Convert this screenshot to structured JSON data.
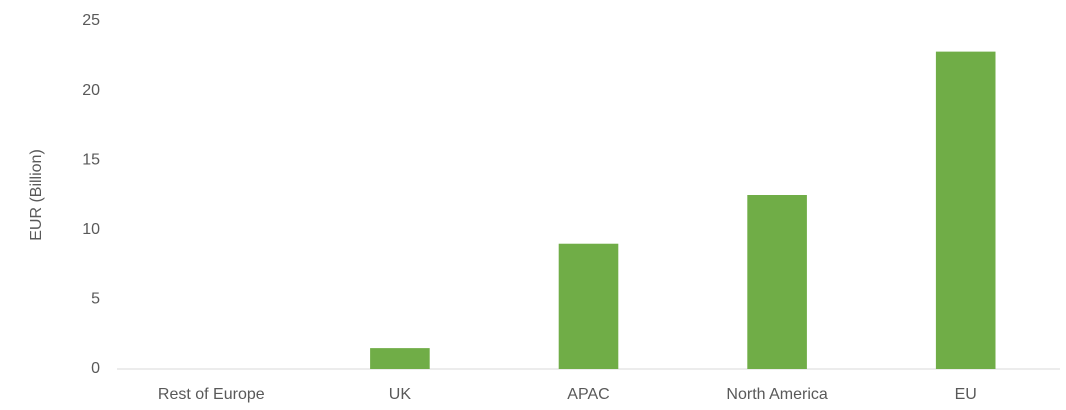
{
  "chart_data": {
    "type": "bar",
    "y_label": "EUR (Billion)",
    "categories": [
      "Rest of Europe",
      "UK",
      "APAC",
      "North America",
      "EU"
    ],
    "values": [
      0,
      1.5,
      9.0,
      12.5,
      22.8
    ],
    "color": "#70ad47",
    "ylim": [
      0,
      25
    ],
    "yticks": [
      0,
      5,
      10,
      15,
      20,
      25
    ],
    "grid": false
  }
}
